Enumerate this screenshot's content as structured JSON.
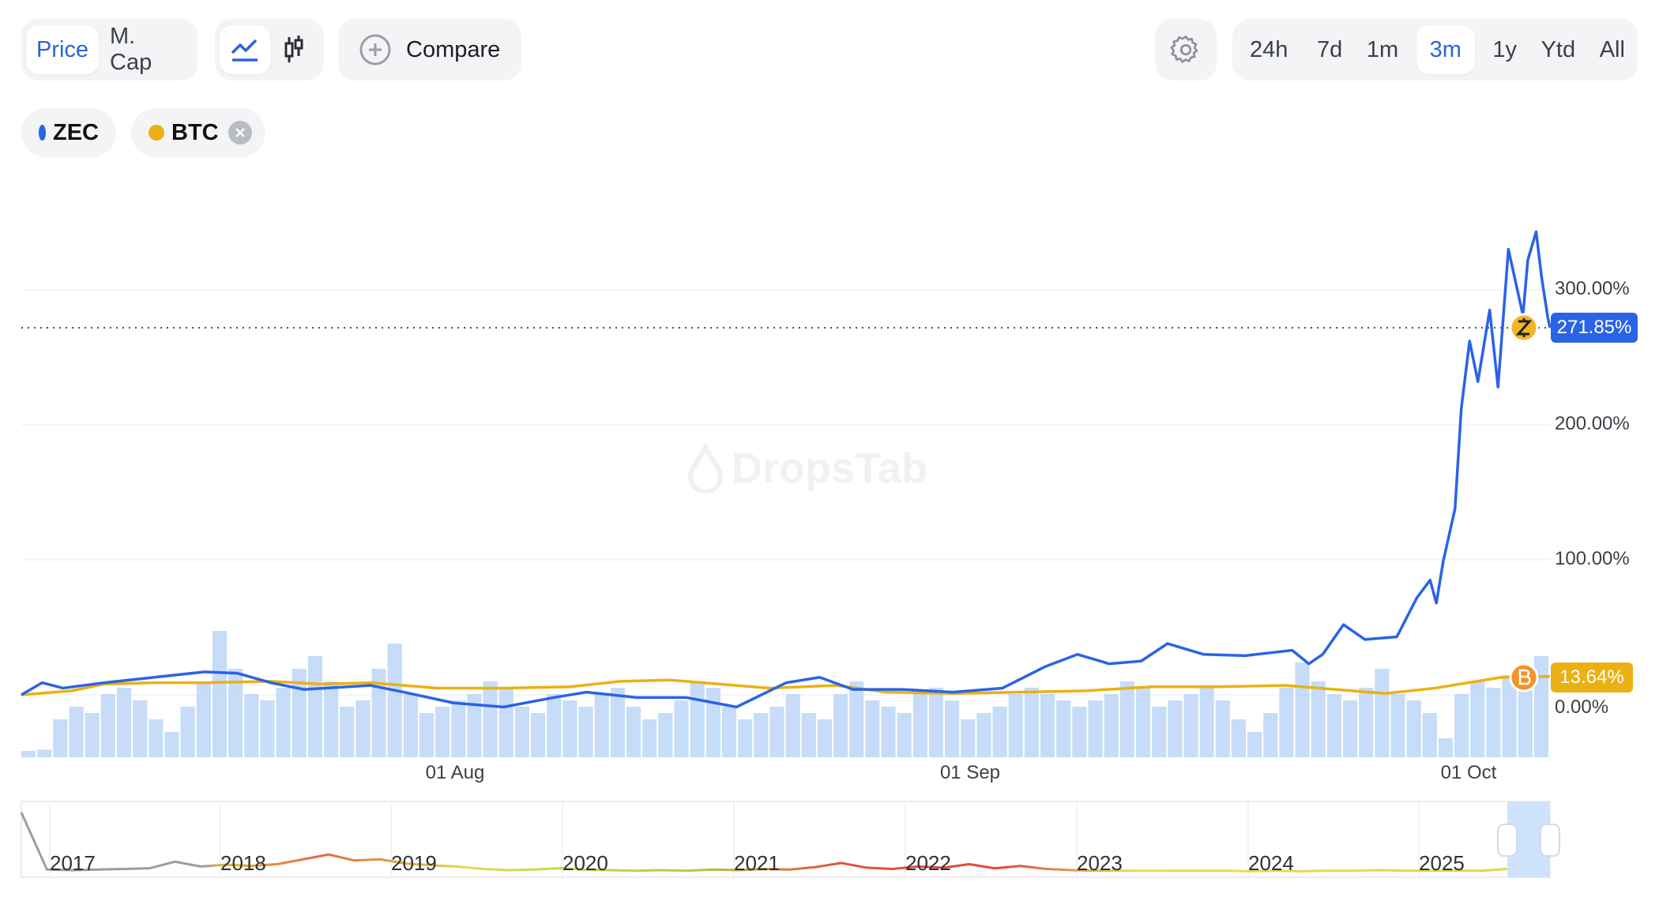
{
  "toolbar": {
    "metric_tabs": [
      {
        "label": "Price",
        "active": true
      },
      {
        "label": "M. Cap",
        "active": false
      }
    ],
    "chart_types": [
      {
        "icon": "line-chart-icon",
        "active": true
      },
      {
        "icon": "candlestick-icon",
        "active": false
      }
    ],
    "compare_label": "Compare",
    "settings_icon": "gear-icon",
    "ranges": [
      {
        "label": "24h",
        "active": false
      },
      {
        "label": "7d",
        "active": false
      },
      {
        "label": "1m",
        "active": false
      },
      {
        "label": "3m",
        "active": true
      },
      {
        "label": "1y",
        "active": false
      },
      {
        "label": "Ytd",
        "active": false
      },
      {
        "label": "All",
        "active": false
      }
    ]
  },
  "legend": [
    {
      "label": "ZEC",
      "color": "#2b63e6",
      "removable": false
    },
    {
      "label": "BTC",
      "color": "#ebb014",
      "removable": true
    }
  ],
  "watermark": "DropsTab",
  "chart_data": {
    "type": "line",
    "ylabel": "",
    "y_unit": "%",
    "ylim": [
      -30,
      350
    ],
    "y_ticks": [
      "0.00%",
      "100.00%",
      "200.00%",
      "300.00%"
    ],
    "x_ticks": [
      "01 Aug",
      "01 Sep",
      "01 Oct"
    ],
    "x_range": [
      "2025-07-06T00:00",
      "2025-10-05T22:00"
    ],
    "grid": true,
    "series": [
      {
        "name": "ZEC",
        "color": "#2b63e6",
        "last_label": "271.85%",
        "points": [
          [
            "2025-07-06T00:00",
            0
          ],
          [
            "2025-07-07T06:00",
            9
          ],
          [
            "2025-07-08T12:00",
            5
          ],
          [
            "2025-07-11T00:00",
            9
          ],
          [
            "2025-07-14T00:00",
            13
          ],
          [
            "2025-07-17T00:00",
            17
          ],
          [
            "2025-07-19T00:00",
            16
          ],
          [
            "2025-07-21T00:00",
            9
          ],
          [
            "2025-07-23T00:00",
            4
          ],
          [
            "2025-07-27T00:00",
            7
          ],
          [
            "2025-07-29T00:00",
            2
          ],
          [
            "2025-08-01T00:00",
            -6
          ],
          [
            "2025-08-04T00:00",
            -9
          ],
          [
            "2025-08-07T00:00",
            -2
          ],
          [
            "2025-08-09T00:00",
            2
          ],
          [
            "2025-08-12T00:00",
            -2
          ],
          [
            "2025-08-15T00:00",
            -2
          ],
          [
            "2025-08-18T00:00",
            -9
          ],
          [
            "2025-08-21T00:00",
            9
          ],
          [
            "2025-08-23T00:00",
            13
          ],
          [
            "2025-08-25T00:00",
            4
          ],
          [
            "2025-08-28T00:00",
            4
          ],
          [
            "2025-08-31T00:00",
            2
          ],
          [
            "2025-09-03T00:00",
            5
          ],
          [
            "2025-09-05T14:00",
            21
          ],
          [
            "2025-09-07T12:00",
            30
          ],
          [
            "2025-09-09T10:00",
            23
          ],
          [
            "2025-09-11T08:00",
            25
          ],
          [
            "2025-09-12T22:00",
            38
          ],
          [
            "2025-09-15T02:00",
            30
          ],
          [
            "2025-09-17T14:00",
            29
          ],
          [
            "2025-09-20T10:00",
            33
          ],
          [
            "2025-09-21T10:00",
            23
          ],
          [
            "2025-09-22T06:00",
            30
          ],
          [
            "2025-09-23T12:00",
            52
          ],
          [
            "2025-09-24T19:00",
            41
          ],
          [
            "2025-09-26T17:00",
            43
          ],
          [
            "2025-09-27T22:00",
            72
          ],
          [
            "2025-09-28T17:00",
            85
          ],
          [
            "2025-09-29T02:00",
            68
          ],
          [
            "2025-09-29T12:00",
            99
          ],
          [
            "2025-09-30T05:00",
            138
          ],
          [
            "2025-09-30T14:00",
            212
          ],
          [
            "2025-10-01T02:00",
            262
          ],
          [
            "2025-10-01T14:00",
            232
          ],
          [
            "2025-10-02T07:00",
            285
          ],
          [
            "2025-10-02T19:00",
            228
          ],
          [
            "2025-10-03T10:00",
            330
          ],
          [
            "2025-10-03T19:00",
            309
          ],
          [
            "2025-10-04T07:00",
            281
          ],
          [
            "2025-10-04T14:00",
            322
          ],
          [
            "2025-10-05T02:00",
            343
          ],
          [
            "2025-10-05T10:00",
            309
          ],
          [
            "2025-10-05T19:00",
            279
          ],
          [
            "2025-10-05T22:00",
            271.85
          ]
        ]
      },
      {
        "name": "BTC",
        "color": "#ebb014",
        "last_label": "13.64%",
        "points": [
          [
            "2025-07-06T00:00",
            0
          ],
          [
            "2025-07-09T00:00",
            3
          ],
          [
            "2025-07-11T00:00",
            8
          ],
          [
            "2025-07-14T00:00",
            9
          ],
          [
            "2025-07-17T00:00",
            9
          ],
          [
            "2025-07-21T00:00",
            10
          ],
          [
            "2025-07-24T00:00",
            8
          ],
          [
            "2025-07-27T00:00",
            9
          ],
          [
            "2025-07-31T00:00",
            5
          ],
          [
            "2025-08-04T00:00",
            5
          ],
          [
            "2025-08-08T00:00",
            6
          ],
          [
            "2025-08-11T00:00",
            10
          ],
          [
            "2025-08-14T00:00",
            11
          ],
          [
            "2025-08-17T00:00",
            8
          ],
          [
            "2025-08-20T00:00",
            5
          ],
          [
            "2025-08-24T00:00",
            7
          ],
          [
            "2025-08-27T00:00",
            2
          ],
          [
            "2025-08-31T00:00",
            1
          ],
          [
            "2025-09-04T00:00",
            2
          ],
          [
            "2025-09-08T00:00",
            3
          ],
          [
            "2025-09-12T00:00",
            6
          ],
          [
            "2025-09-16T00:00",
            6
          ],
          [
            "2025-09-20T00:00",
            7
          ],
          [
            "2025-09-23T00:00",
            4
          ],
          [
            "2025-09-26T00:00",
            1
          ],
          [
            "2025-09-29T00:00",
            5
          ],
          [
            "2025-10-01T00:00",
            9
          ],
          [
            "2025-10-03T00:00",
            13
          ],
          [
            "2025-10-05T22:00",
            13.64
          ]
        ]
      }
    ],
    "volume_relative": [
      0.05,
      0.06,
      0.3,
      0.4,
      0.35,
      0.5,
      0.55,
      0.45,
      0.3,
      0.2,
      0.4,
      0.6,
      1.0,
      0.7,
      0.5,
      0.45,
      0.55,
      0.7,
      0.8,
      0.6,
      0.4,
      0.45,
      0.7,
      0.9,
      0.5,
      0.35,
      0.4,
      0.45,
      0.5,
      0.6,
      0.55,
      0.4,
      0.35,
      0.5,
      0.45,
      0.4,
      0.5,
      0.55,
      0.4,
      0.3,
      0.35,
      0.45,
      0.6,
      0.55,
      0.4,
      0.3,
      0.35,
      0.4,
      0.5,
      0.35,
      0.3,
      0.5,
      0.6,
      0.45,
      0.4,
      0.35,
      0.5,
      0.55,
      0.45,
      0.3,
      0.35,
      0.4,
      0.5,
      0.55,
      0.5,
      0.45,
      0.4,
      0.45,
      0.5,
      0.6,
      0.55,
      0.4,
      0.45,
      0.5,
      0.55,
      0.45,
      0.3,
      0.2,
      0.35,
      0.55,
      0.75,
      0.6,
      0.5,
      0.45,
      0.55,
      0.7,
      0.5,
      0.45,
      0.35,
      0.15,
      0.5,
      0.6,
      0.55,
      0.65,
      0.7,
      0.8
    ],
    "volume_color": "#bcd6f7",
    "navigator": {
      "year_labels": [
        "2017",
        "2018",
        "2019",
        "2020",
        "2021",
        "2022",
        "2023",
        "2024",
        "2025"
      ],
      "selected_range": "3m",
      "values_relative": [
        1.0,
        0.05,
        0.04,
        0.05,
        0.06,
        0.07,
        0.18,
        0.1,
        0.13,
        0.11,
        0.14,
        0.22,
        0.3,
        0.2,
        0.22,
        0.15,
        0.12,
        0.1,
        0.06,
        0.04,
        0.05,
        0.07,
        0.05,
        0.04,
        0.03,
        0.04,
        0.03,
        0.05,
        0.04,
        0.06,
        0.05,
        0.09,
        0.16,
        0.08,
        0.06,
        0.1,
        0.08,
        0.14,
        0.07,
        0.11,
        0.06,
        0.04,
        0.03,
        0.03,
        0.03,
        0.03,
        0.03,
        0.03,
        0.02,
        0.03,
        0.02,
        0.03,
        0.03,
        0.04,
        0.03,
        0.03,
        0.03,
        0.03,
        0.06
      ]
    }
  }
}
